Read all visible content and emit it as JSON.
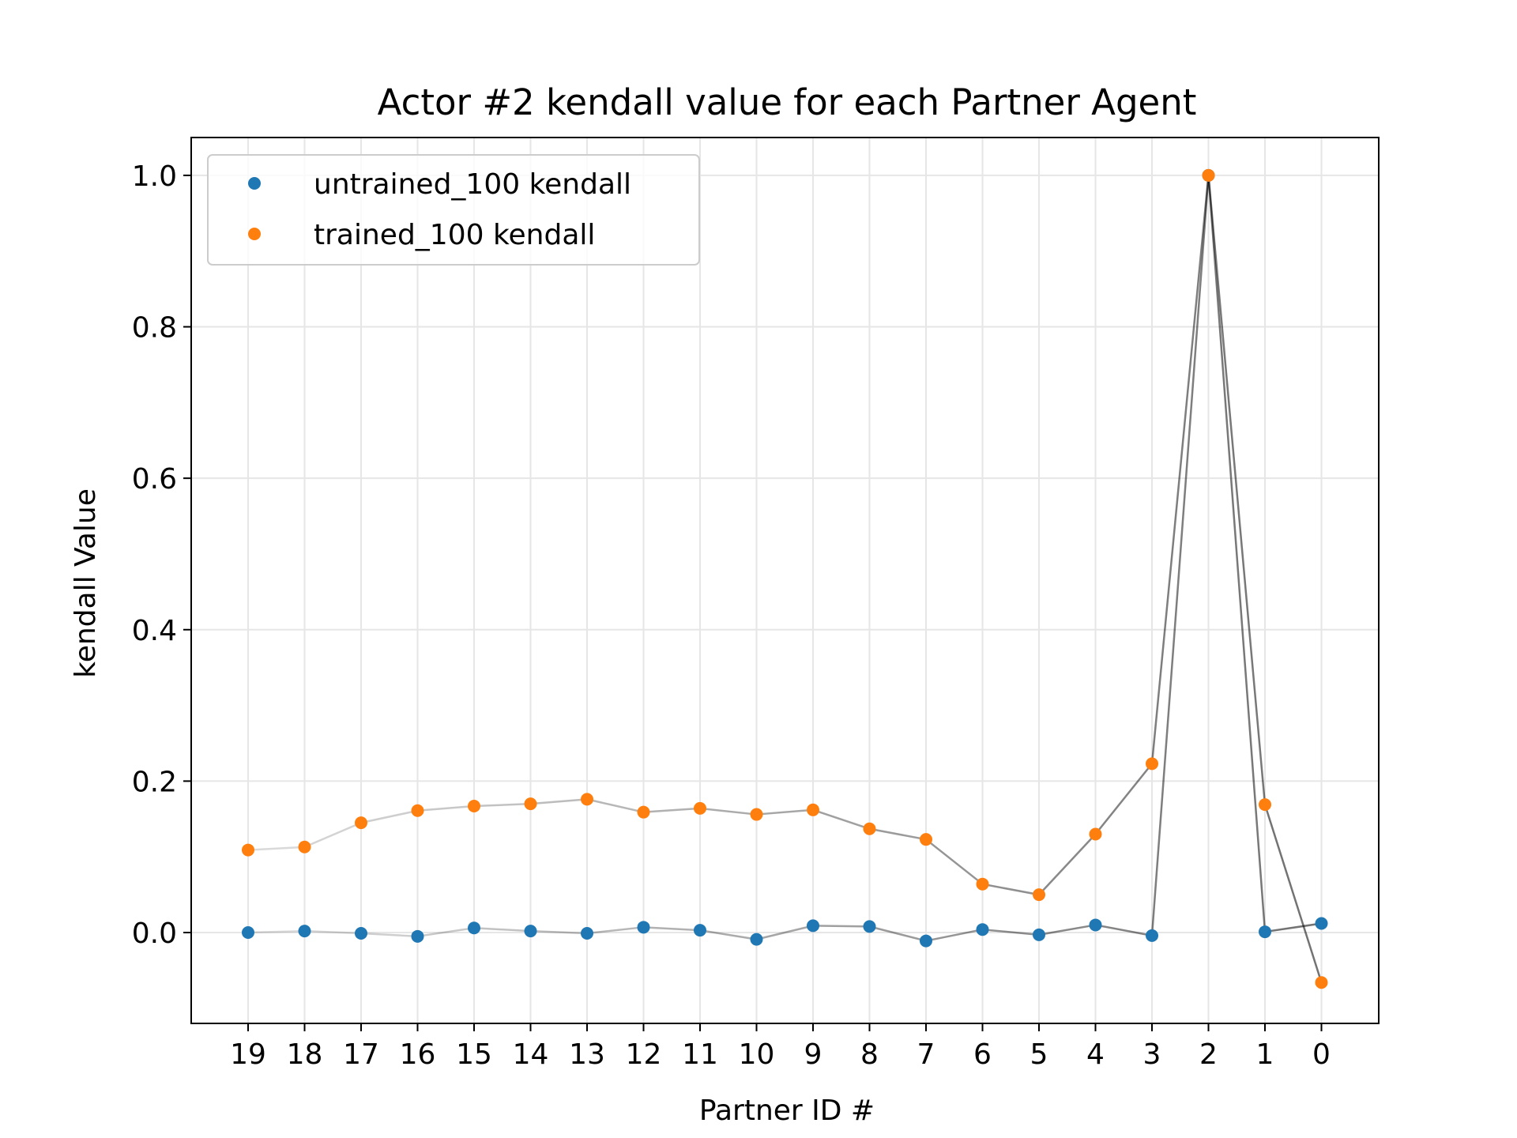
{
  "chart_data": {
    "type": "scatter",
    "title": "Actor #2 kendall value for each Partner Agent",
    "xlabel": "Partner ID #",
    "ylabel": "kendall Value",
    "categories": [
      "19",
      "18",
      "17",
      "16",
      "15",
      "14",
      "13",
      "12",
      "11",
      "10",
      "9",
      "8",
      "7",
      "6",
      "5",
      "4",
      "3",
      "2",
      "1",
      "0"
    ],
    "ylim": [
      -0.12,
      1.05
    ],
    "yticks": [
      0.0,
      0.2,
      0.4,
      0.6,
      0.8,
      1.0
    ],
    "ytick_labels": [
      "0.0",
      "0.2",
      "0.4",
      "0.6",
      "0.8",
      "1.0"
    ],
    "grid": true,
    "legend_position": "upper-left",
    "series": [
      {
        "name": "untrained_100 kendall",
        "color": "#1f77b4",
        "values": [
          0.0,
          0.002,
          -0.001,
          -0.005,
          0.006,
          0.002,
          -0.001,
          0.007,
          0.003,
          -0.009,
          0.009,
          0.008,
          -0.011,
          0.004,
          -0.003,
          0.01,
          -0.004,
          1.0,
          0.001,
          0.012
        ]
      },
      {
        "name": "trained_100 kendall",
        "color": "#ff7f0e",
        "values": [
          0.109,
          0.113,
          0.145,
          0.161,
          0.167,
          0.17,
          0.176,
          0.159,
          0.164,
          0.156,
          0.162,
          0.137,
          0.123,
          0.064,
          0.05,
          0.13,
          0.223,
          1.0,
          0.169,
          -0.066
        ]
      }
    ]
  }
}
